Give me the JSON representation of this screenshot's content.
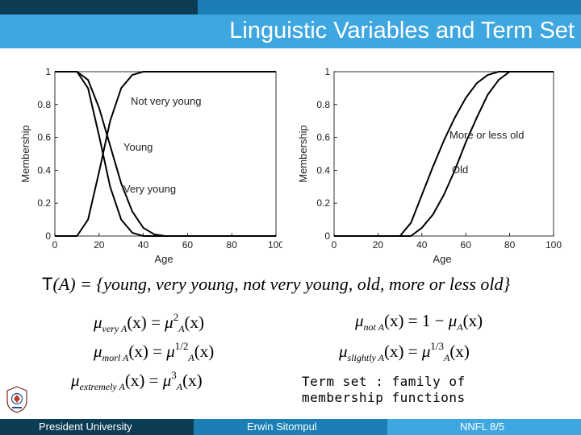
{
  "slide": {
    "title": "Linguistic Variables and Term Set"
  },
  "chart_data": [
    {
      "type": "line",
      "xlabel": "Age",
      "ylabel": "Membership",
      "xlim": [
        0,
        100
      ],
      "ylim": [
        0,
        1
      ],
      "x_ticks": [
        "0",
        "20",
        "40",
        "60",
        "80",
        "100"
      ],
      "y_ticks": [
        "0",
        "0.2",
        "0.4",
        "0.6",
        "0.8",
        "1"
      ],
      "grid": false,
      "series": [
        {
          "name": "Young",
          "x": [
            0,
            10,
            15,
            20,
            25,
            30,
            35,
            40,
            45,
            50,
            60,
            100
          ],
          "y": [
            1,
            1,
            0.95,
            0.78,
            0.55,
            0.32,
            0.15,
            0.05,
            0.01,
            0,
            0,
            0
          ]
        },
        {
          "name": "Very young",
          "x": [
            0,
            10,
            15,
            20,
            25,
            30,
            35,
            40,
            45,
            50,
            60,
            100
          ],
          "y": [
            1,
            1,
            0.9,
            0.61,
            0.3,
            0.1,
            0.02,
            0,
            0,
            0,
            0,
            0
          ]
        },
        {
          "name": "Not very young",
          "x": [
            0,
            10,
            15,
            20,
            25,
            30,
            35,
            40,
            45,
            50,
            60,
            100
          ],
          "y": [
            0,
            0,
            0.1,
            0.39,
            0.7,
            0.9,
            0.98,
            1,
            1,
            1,
            1,
            1
          ]
        }
      ],
      "labels": [
        "Not very young",
        "Young",
        "Very young"
      ]
    },
    {
      "type": "line",
      "xlabel": "Age",
      "ylabel": "Membership",
      "xlim": [
        0,
        100
      ],
      "ylim": [
        0,
        1
      ],
      "x_ticks": [
        "0",
        "20",
        "40",
        "60",
        "80",
        "100"
      ],
      "y_ticks": [
        "0",
        "0.2",
        "0.4",
        "0.6",
        "0.8",
        "1"
      ],
      "grid": false,
      "series": [
        {
          "name": "Old",
          "x": [
            0,
            35,
            40,
            45,
            50,
            55,
            60,
            65,
            70,
            75,
            80,
            100
          ],
          "y": [
            0,
            0,
            0.05,
            0.13,
            0.25,
            0.4,
            0.57,
            0.72,
            0.86,
            0.95,
            1,
            1
          ]
        },
        {
          "name": "More or less old",
          "x": [
            0,
            30,
            35,
            40,
            45,
            50,
            55,
            60,
            65,
            70,
            75,
            100
          ],
          "y": [
            0,
            0,
            0.08,
            0.25,
            0.42,
            0.58,
            0.72,
            0.84,
            0.93,
            0.98,
            1,
            1
          ]
        }
      ],
      "labels": [
        "More or less old",
        "Old"
      ]
    }
  ],
  "term_set": {
    "T": "T",
    "open": "(A) = {",
    "terms": "young, very young, not very young, old, more or less old",
    "close": "}"
  },
  "formulas": {
    "mu": "μ",
    "x": "(x)",
    "eq": " = ",
    "A": "A",
    "very_sub": "very A",
    "mol_sub": "morl A",
    "ext_sub": "extremely A",
    "not_sub": "not A",
    "sl_sub": "slightly A",
    "pow2": "2",
    "pow12": "1/2",
    "pow3": "3",
    "pow13": "1/3",
    "one_minus": "1 − "
  },
  "caption": {
    "line1": "Term set : family of",
    "line2": "membership functions"
  },
  "footer": {
    "left": "President University",
    "middle": "Erwin Sitompul",
    "right": "NNFL 8/5"
  },
  "colors": {
    "dark_blue": "#0d3d55",
    "mid_blue": "#1b7fb5",
    "light_blue": "#3fa7e0"
  }
}
